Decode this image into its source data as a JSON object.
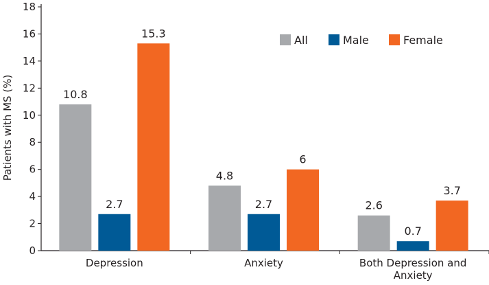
{
  "chart_data": {
    "type": "bar",
    "title": "",
    "xlabel": "",
    "ylabel": "Patients with MS (%)",
    "ylim": [
      0,
      18
    ],
    "yticks": [
      0,
      2,
      4,
      6,
      8,
      10,
      12,
      14,
      16,
      18
    ],
    "grid": false,
    "legend_position": "top-right",
    "categories": [
      [
        "Depression"
      ],
      [
        "Anxiety"
      ],
      [
        "Both Depression and",
        "Anxiety"
      ]
    ],
    "series": [
      {
        "name": "All",
        "color": "#a7a9ac",
        "values": [
          10.8,
          4.8,
          2.6
        ],
        "labels": [
          "10.8",
          "4.8",
          "2.6"
        ]
      },
      {
        "name": "Male",
        "color": "#005a96",
        "values": [
          2.7,
          2.7,
          0.7
        ],
        "labels": [
          "2.7",
          "2.7",
          "0.7"
        ]
      },
      {
        "name": "Female",
        "color": "#f26722",
        "values": [
          15.3,
          6,
          3.7
        ],
        "labels": [
          "15.3",
          "6",
          "3.7"
        ]
      }
    ]
  }
}
